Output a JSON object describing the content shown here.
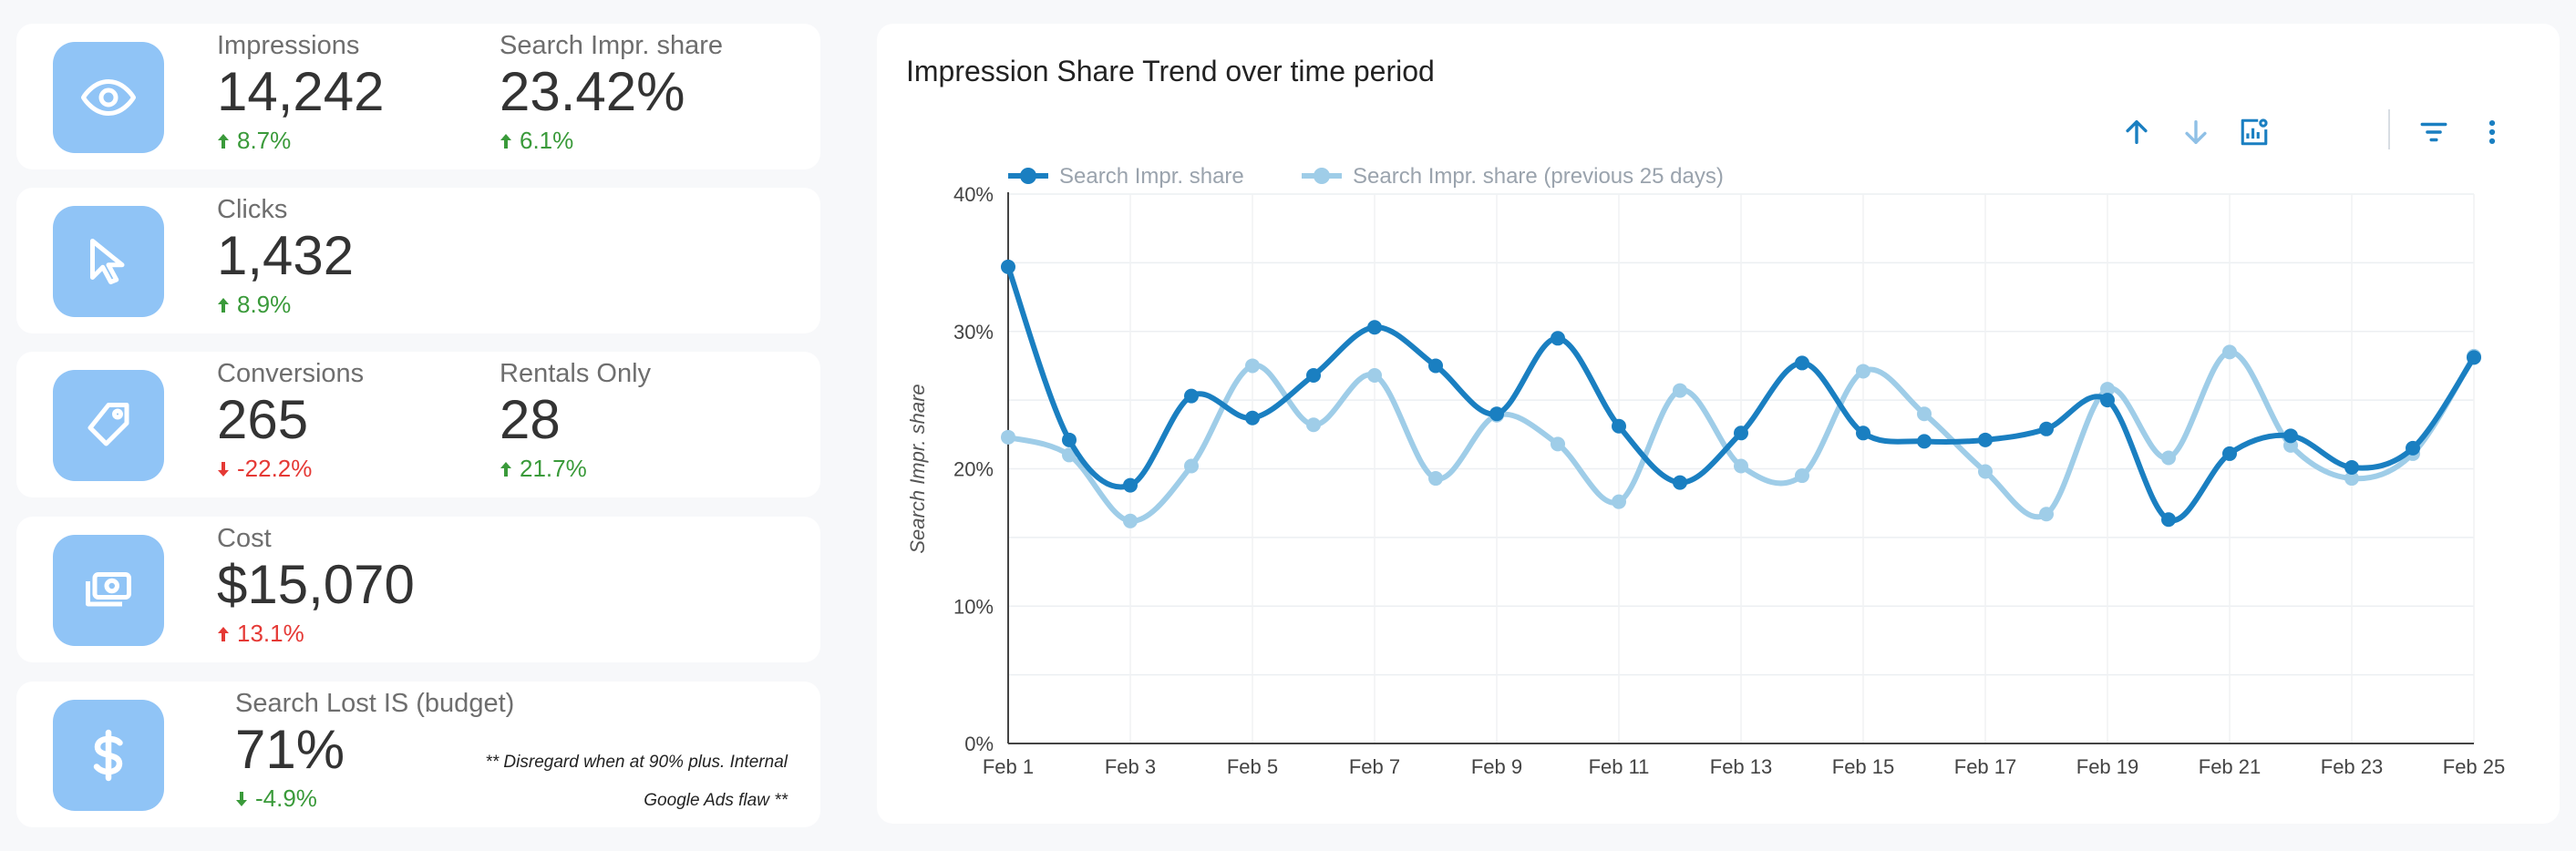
{
  "scorecards": [
    {
      "icon": "eye-icon",
      "metrics": [
        {
          "label": "Impressions",
          "value": "14,242",
          "delta": "8.7%",
          "direction": "up",
          "sentiment": "positive"
        },
        {
          "label": "Search Impr. share",
          "value": "23.42%",
          "delta": "6.1%",
          "direction": "up",
          "sentiment": "positive"
        }
      ]
    },
    {
      "icon": "cursor-icon",
      "metrics": [
        {
          "label": "Clicks",
          "value": "1,432",
          "delta": "8.9%",
          "direction": "up",
          "sentiment": "positive"
        }
      ]
    },
    {
      "icon": "tag-icon",
      "metrics": [
        {
          "label": "Conversions",
          "value": "265",
          "delta": "-22.2%",
          "direction": "down",
          "sentiment": "negative"
        },
        {
          "label": "Rentals Only",
          "value": "28",
          "delta": "21.7%",
          "direction": "up",
          "sentiment": "positive"
        }
      ]
    },
    {
      "icon": "money-icon",
      "metrics": [
        {
          "label": "Cost",
          "value": "$15,070",
          "delta": "13.1%",
          "direction": "up",
          "sentiment": "negative"
        }
      ]
    },
    {
      "icon": "dollar-icon",
      "metrics": [
        {
          "label": "Search Lost IS (budget)",
          "value": "71%",
          "delta": "-4.9%",
          "direction": "down",
          "sentiment": "positive"
        }
      ],
      "note_line1": "** Disregard when at 90% plus. Internal",
      "note_line2": "Google Ads flaw **"
    }
  ],
  "colors": {
    "positive": "#3a9a3a",
    "negative": "#e53935",
    "tile": "#90c4f6",
    "series_current": "#1a7fc1",
    "series_previous": "#9fcde8",
    "toolbar_icon": "#1a7fc1"
  },
  "toolbar": {
    "icons": [
      "sort-ascending-icon",
      "sort-descending-icon",
      "chart-settings-icon",
      "filter-icon",
      "more-options-icon"
    ]
  },
  "chart_data": {
    "type": "line",
    "title": "Impression Share Trend over time period",
    "xlabel": "",
    "ylabel": "Search Impr. share",
    "ylim": [
      0,
      40
    ],
    "yticks": [
      "0%",
      "10%",
      "20%",
      "30%",
      "40%"
    ],
    "ytick_values": [
      0,
      10,
      20,
      30,
      40
    ],
    "x": [
      "Feb 1",
      "Feb 2",
      "Feb 3",
      "Feb 4",
      "Feb 5",
      "Feb 6",
      "Feb 7",
      "Feb 8",
      "Feb 9",
      "Feb 10",
      "Feb 11",
      "Feb 12",
      "Feb 13",
      "Feb 14",
      "Feb 15",
      "Feb 16",
      "Feb 17",
      "Feb 18",
      "Feb 19",
      "Feb 20",
      "Feb 21",
      "Feb 22",
      "Feb 23",
      "Feb 24",
      "Feb 25"
    ],
    "xtick_labels": [
      "Feb 1",
      "Feb 3",
      "Feb 5",
      "Feb 7",
      "Feb 9",
      "Feb 11",
      "Feb 13",
      "Feb 15",
      "Feb 17",
      "Feb 19",
      "Feb 21",
      "Feb 23",
      "Feb 25"
    ],
    "legend_position": "top-left",
    "grid": true,
    "series": [
      {
        "name": "Search Impr. share",
        "values": [
          34.7,
          22.1,
          18.8,
          25.3,
          23.7,
          26.8,
          30.3,
          27.5,
          24.0,
          29.5,
          23.1,
          19.0,
          22.6,
          27.7,
          22.6,
          22.0,
          22.1,
          22.9,
          25.0,
          16.3,
          21.1,
          22.4,
          20.1,
          21.5,
          28.1
        ]
      },
      {
        "name": "Search Impr. share (previous 25 days)",
        "values": [
          22.3,
          21.0,
          16.2,
          20.2,
          27.5,
          23.2,
          26.8,
          19.3,
          23.9,
          21.8,
          17.6,
          25.7,
          20.2,
          19.5,
          27.1,
          24.0,
          19.8,
          16.7,
          25.8,
          20.8,
          28.5,
          21.7,
          19.3,
          21.1,
          28.2
        ]
      }
    ]
  }
}
